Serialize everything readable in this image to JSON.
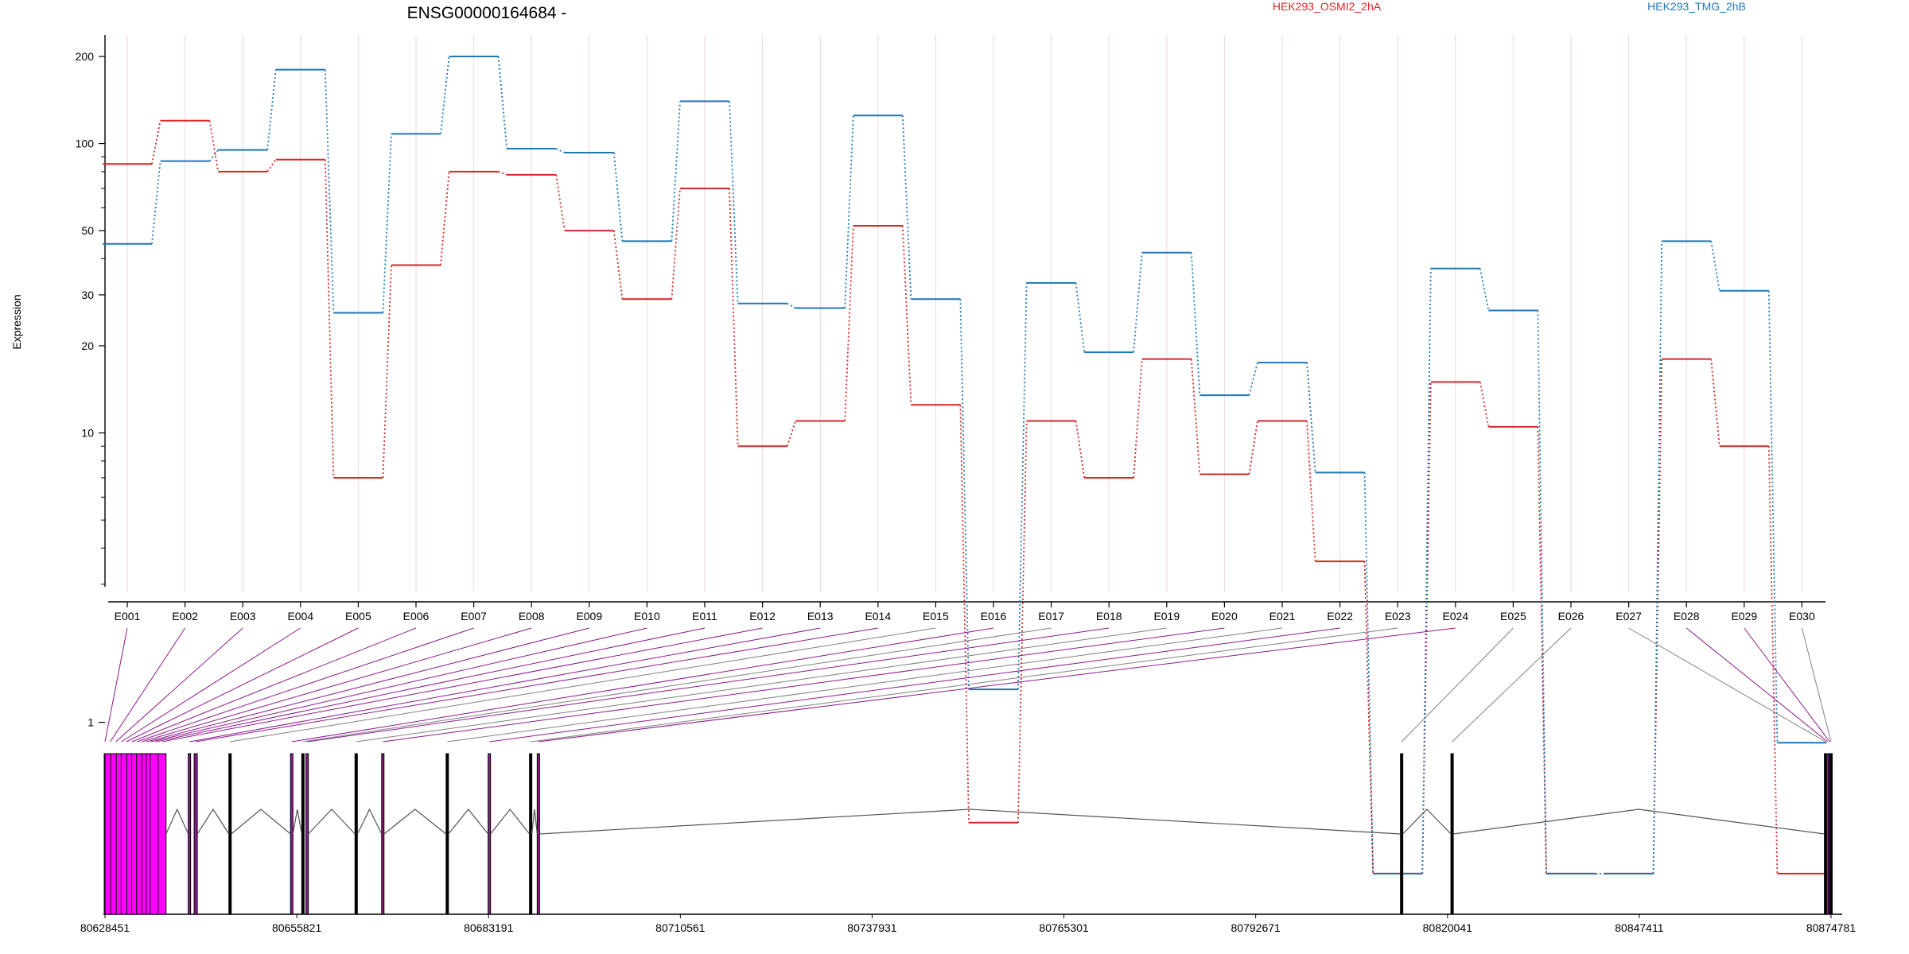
{
  "chart_data": {
    "type": "line",
    "title": "ENSG00000164684 -",
    "xlabel": "",
    "ylabel": "Expression",
    "yscale": "log",
    "ylim": [
      0.25,
      260
    ],
    "yticks": [
      "200",
      "100",
      "50",
      "30",
      "20",
      "10",
      "1"
    ],
    "ytick_values": [
      200,
      100,
      50,
      30,
      20,
      10,
      1
    ],
    "grid": "vertical",
    "legend_position": "top",
    "categories": [
      "E001",
      "E002",
      "E003",
      "E004",
      "E005",
      "E006",
      "E007",
      "E008",
      "E009",
      "E010",
      "E011",
      "E012",
      "E013",
      "E014",
      "E015",
      "E016",
      "E017",
      "E018",
      "E019",
      "E020",
      "E021",
      "E022",
      "E023",
      "E024",
      "E025",
      "E026",
      "E027",
      "E028",
      "E029",
      "E030"
    ],
    "series": [
      {
        "name": "HEK293_OSMI2_2hA",
        "color": "#d62728",
        "values": [
          85,
          120,
          80,
          88,
          7,
          38,
          80,
          78,
          50,
          29,
          70,
          9,
          11,
          52,
          12.5,
          0.45,
          11,
          7,
          18,
          7.2,
          11,
          3.6,
          0.3,
          15,
          10.5,
          0.3,
          0.3,
          18,
          9,
          0.3
        ]
      },
      {
        "name": "HEK293_TMG_2hB",
        "color": "#1f77b4",
        "values": [
          45,
          87,
          95,
          180,
          26,
          108,
          200,
          96,
          93,
          46,
          140,
          28,
          27,
          125,
          29,
          1.3,
          33,
          19,
          42,
          13.5,
          17.5,
          7.3,
          0.3,
          37,
          26.5,
          0.3,
          0.3,
          46,
          31,
          0.85
        ]
      }
    ],
    "gene_track": {
      "coordinate_ticks": [
        "80628451",
        "80655821",
        "80683191",
        "80710561",
        "80737931",
        "80765301",
        "80792671",
        "80820041",
        "80847411",
        "80874781"
      ],
      "coordinate_values": [
        80628451,
        80655821,
        80683191,
        80710561,
        80737931,
        80765301,
        80792671,
        80820041,
        80847411,
        80874781
      ],
      "exon_positions": [
        80628451,
        80629200,
        80630000,
        80630800,
        80631500,
        80632300,
        80633000,
        80633700,
        80634400,
        80635000,
        80635700,
        80636600,
        80640500,
        80641400,
        80646300,
        80655100,
        80656700,
        80657300,
        80664300,
        80668100,
        80677300,
        80683300,
        80689200,
        80690300,
        80813500,
        80820700,
        80874000,
        80874300,
        80874600,
        80874781
      ],
      "differential_exons": [
        "E001",
        "E002",
        "E003",
        "E004",
        "E005",
        "E006",
        "E007",
        "E008",
        "E009",
        "E010",
        "E011",
        "E012",
        "E013",
        "E014",
        "E016",
        "E018",
        "E020",
        "E022",
        "E024",
        "E028",
        "E029"
      ],
      "highlight_color": "#ff00ff",
      "connector_color": "#8b1a8b",
      "neutral_color": "#808080"
    }
  }
}
